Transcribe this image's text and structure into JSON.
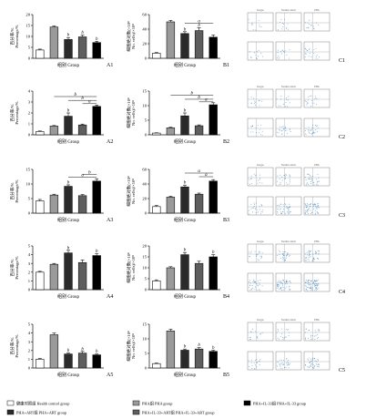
{
  "colors": {
    "healthy": "#ffffff",
    "pha": "#9a9a9a",
    "pha_art": "#2b2b2b",
    "pha_il33_art": "#5e5e5e",
    "pha_il33": "#000000",
    "axis": "#111111",
    "flow_dots": "#1f6fb2"
  },
  "legend": {
    "items": [
      {
        "label": "健康对照组  Health control group",
        "fill": "#ffffff"
      },
      {
        "label": "PHA组  PHA  group",
        "fill": "#9a9a9a"
      },
      {
        "label": "PHA+IL-33组  PHA+IL-33 group",
        "fill": "#000000"
      },
      {
        "label": "PHA+ART组  PHA+ART  group",
        "fill": "#2b2b2b"
      },
      {
        "label": "PHA+IL-33+ART组  PHA+IL-33+ART group",
        "fill": "#5e5e5e"
      }
    ]
  },
  "flow": {
    "header": [
      "Isotype",
      "Normal control",
      "PHA"
    ],
    "rows": [
      {
        "id": "C1",
        "density": 0.15
      },
      {
        "id": "C2",
        "density": 0.25
      },
      {
        "id": "C3",
        "density": 0.6
      },
      {
        "id": "C4",
        "density": 0.85
      },
      {
        "id": "C5",
        "density": 0.4
      }
    ]
  },
  "chart_data": [
    {
      "id": "A1",
      "type": "bar",
      "panel_label": "A1",
      "xlabel": "组别  Group",
      "ylabel_cn": "百分率/%",
      "ylabel_en": "Percentage/%",
      "ylim": [
        0,
        20
      ],
      "yticks": [
        0,
        5,
        10,
        15,
        20
      ],
      "values": [
        3.8,
        14.3,
        8.6,
        9.8,
        7.2
      ],
      "errors": [
        0.4,
        0.5,
        0.9,
        0.8,
        0.6
      ],
      "annotations": [
        {
          "bar": 2,
          "text": "b"
        },
        {
          "bar": 3,
          "text": "b"
        },
        {
          "bar": 4,
          "text": "b"
        }
      ],
      "brackets": []
    },
    {
      "id": "B1",
      "type": "bar",
      "panel_label": "B1",
      "xlabel": "组别  Group",
      "ylabel_cn": "细胞绝对数(×10⁸",
      "ylabel_en": "No. cells)/×10⁸",
      "ylim": [
        0,
        60
      ],
      "yticks": [
        0,
        20,
        40,
        60
      ],
      "values": [
        7,
        50,
        34,
        38,
        29
      ],
      "errors": [
        1.0,
        2.0,
        2.5,
        4.0,
        3.0
      ],
      "annotations": [
        {
          "bar": 2,
          "text": "b"
        },
        {
          "bar": 3,
          "text": "b"
        }
      ],
      "brackets": [
        {
          "from": 2,
          "to": 4,
          "text": "a",
          "level": 48
        }
      ]
    },
    {
      "id": "A2",
      "type": "bar",
      "panel_label": "A2",
      "xlabel": "组别  Group",
      "ylabel_cn": "百分率/%",
      "ylabel_en": "Percentage/%",
      "ylim": [
        0,
        4
      ],
      "yticks": [
        0,
        1,
        2,
        3,
        4
      ],
      "values": [
        0.3,
        0.8,
        1.7,
        0.9,
        2.6
      ],
      "errors": [
        0.05,
        0.05,
        0.3,
        0.08,
        0.12
      ],
      "annotations": [
        {
          "bar": 2,
          "text": "b"
        }
      ],
      "brackets": [
        {
          "from": 1,
          "to": 4,
          "text": "b",
          "level": 3.5
        },
        {
          "from": 2,
          "to": 4,
          "text": "b",
          "level": 3.15
        },
        {
          "from": 3,
          "to": 4,
          "text": "a",
          "level": 2.85
        }
      ]
    },
    {
      "id": "B2",
      "type": "bar",
      "panel_label": "B2",
      "xlabel": "组别  Group",
      "ylabel_cn": "细胞绝对数(×10⁸",
      "ylabel_en": "No. cells)/×10⁸",
      "ylim": [
        0,
        15
      ],
      "yticks": [
        0,
        5,
        10,
        15
      ],
      "values": [
        0.6,
        2.4,
        6.5,
        3.1,
        10.3
      ],
      "errors": [
        0.1,
        0.2,
        1.0,
        0.3,
        0.7
      ],
      "annotations": [
        {
          "bar": 2,
          "text": "b"
        }
      ],
      "brackets": [
        {
          "from": 1,
          "to": 4,
          "text": "b",
          "level": 13.6
        },
        {
          "from": 2,
          "to": 4,
          "text": "b",
          "level": 12.2
        },
        {
          "from": 3,
          "to": 4,
          "text": "a",
          "level": 11.3
        }
      ]
    },
    {
      "id": "A3",
      "type": "bar",
      "panel_label": "A3",
      "xlabel": "组别  Group",
      "ylabel_cn": "百分率/%",
      "ylabel_en": "Percentage/%",
      "ylim": [
        0,
        15
      ],
      "yticks": [
        0,
        5,
        10,
        15
      ],
      "values": [
        4.2,
        6.2,
        9.2,
        6.0,
        11.0
      ],
      "errors": [
        0.5,
        0.3,
        0.5,
        0.4,
        0.8
      ],
      "annotations": [
        {
          "bar": 2,
          "text": "b"
        }
      ],
      "brackets": [
        {
          "from": 3,
          "to": 4,
          "text": "b",
          "level": 13.2
        },
        {
          "from": 2,
          "to": 4,
          "text": "a",
          "level": 12.3
        }
      ]
    },
    {
      "id": "B3",
      "type": "bar",
      "panel_label": "B3",
      "xlabel": "组别  Group",
      "ylabel_cn": "细胞绝对数(×10⁸",
      "ylabel_en": "No. cells)/×10⁸",
      "ylim": [
        0,
        60
      ],
      "yticks": [
        0,
        20,
        40,
        60
      ],
      "values": [
        9,
        22,
        36,
        26,
        44
      ],
      "errors": [
        1.5,
        1.2,
        2.5,
        1.5,
        2.0
      ],
      "annotations": [
        {
          "bar": 2,
          "text": "b"
        }
      ],
      "brackets": [
        {
          "from": 2,
          "to": 4,
          "text": "a",
          "level": 55
        },
        {
          "from": 3,
          "to": 4,
          "text": "a",
          "level": 50
        }
      ]
    },
    {
      "id": "A4",
      "type": "bar",
      "panel_label": "A4",
      "xlabel": "组别  Group",
      "ylabel_cn": "百分率/%",
      "ylabel_en": "Percentage/%",
      "ylim": [
        0,
        5
      ],
      "yticks": [
        0,
        1,
        2,
        3,
        4,
        5
      ],
      "values": [
        2.0,
        2.9,
        4.2,
        3.1,
        3.9
      ],
      "errors": [
        0.1,
        0.1,
        0.3,
        0.3,
        0.2
      ],
      "annotations": [
        {
          "bar": 2,
          "text": "b"
        },
        {
          "bar": 4,
          "text": "b"
        }
      ],
      "brackets": []
    },
    {
      "id": "B4",
      "type": "bar",
      "panel_label": "B4",
      "xlabel": "组别  Group",
      "ylabel_cn": "细胞绝对数(×10⁸",
      "ylabel_en": "No. cells)/×10⁸",
      "ylim": [
        0,
        20
      ],
      "yticks": [
        0,
        5,
        10,
        15,
        20
      ],
      "values": [
        4.0,
        10.0,
        16.0,
        12.0,
        15.0
      ],
      "errors": [
        0.5,
        0.5,
        1.0,
        1.0,
        1.0
      ],
      "annotations": [
        {
          "bar": 2,
          "text": "b"
        },
        {
          "bar": 4,
          "text": "b"
        }
      ],
      "brackets": []
    },
    {
      "id": "A5",
      "type": "bar",
      "panel_label": "A5",
      "xlabel": "组别  Group",
      "ylabel_cn": "百分率/%",
      "ylabel_en": "Percentage/%",
      "ylim": [
        0,
        5
      ],
      "yticks": [
        0,
        1,
        2,
        3,
        4,
        5
      ],
      "values": [
        1.0,
        3.8,
        1.6,
        1.7,
        1.5
      ],
      "errors": [
        0.1,
        0.2,
        0.1,
        0.2,
        0.1
      ],
      "annotations": [
        {
          "bar": 2,
          "text": "b"
        },
        {
          "bar": 3,
          "text": "b"
        },
        {
          "bar": 4,
          "text": "b"
        }
      ],
      "brackets": []
    },
    {
      "id": "B5",
      "type": "bar",
      "panel_label": "B5",
      "xlabel": "组别  Group",
      "ylabel_cn": "细胞绝对数(×10⁸",
      "ylabel_en": "No. cells)/×10⁸",
      "ylim": [
        0,
        15
      ],
      "yticks": [
        0,
        5,
        10,
        15
      ],
      "values": [
        1.5,
        12.7,
        6.1,
        6.5,
        5.7
      ],
      "errors": [
        0.2,
        0.6,
        0.4,
        0.5,
        0.4
      ],
      "annotations": [
        {
          "bar": 2,
          "text": "b"
        },
        {
          "bar": 3,
          "text": "b"
        },
        {
          "bar": 4,
          "text": "b"
        }
      ],
      "brackets": []
    }
  ]
}
